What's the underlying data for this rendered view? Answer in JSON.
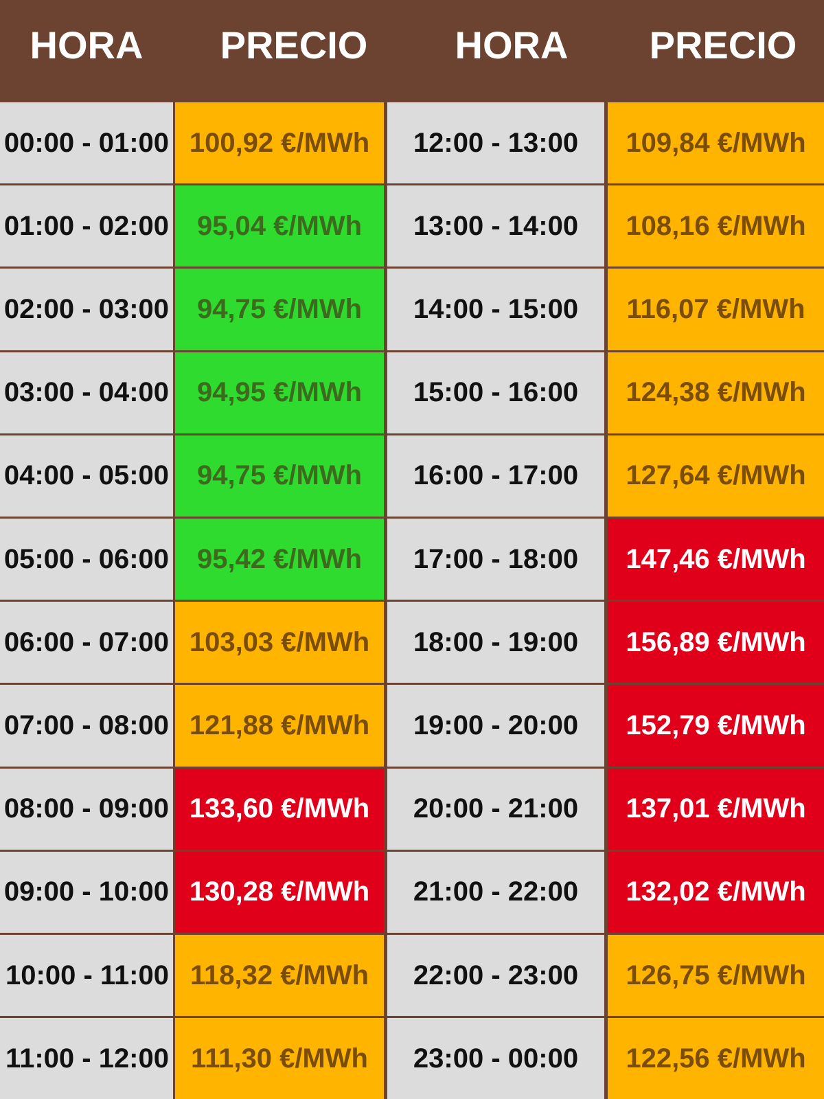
{
  "header": [
    "HORA",
    "PRECIO",
    "HORA",
    "PRECIO"
  ],
  "rows": [
    {
      "cells": [
        "00:00 - 01:00",
        "100,92 €/MWh",
        "12:00 - 13:00",
        "109,84 €/MWh"
      ],
      "fills": [
        "#ffb400",
        "#ffb400"
      ]
    },
    {
      "cells": [
        "01:00 - 02:00",
        "95,04 €/MWh",
        "13:00 - 14:00",
        "108,16 €/MWh"
      ],
      "fills": [
        "#2edb2e",
        "#ffb400"
      ]
    },
    {
      "cells": [
        "02:00 - 03:00",
        "94,75 €/MWh",
        "14:00 - 15:00",
        "116,07 €/MWh"
      ],
      "fills": [
        "#2edb2e",
        "#ffb400"
      ]
    },
    {
      "cells": [
        "03:00 - 04:00",
        "94,95 €/MWh",
        "15:00 - 16:00",
        "124,38 €/MWh"
      ],
      "fills": [
        "#2edb2e",
        "#ffb400"
      ]
    },
    {
      "cells": [
        "04:00 - 05:00",
        "94,75 €/MWh",
        "16:00 - 17:00",
        "127,64 €/MWh"
      ],
      "fills": [
        "#2edb2e",
        "#ffb400"
      ]
    },
    {
      "cells": [
        "05:00 - 06:00",
        "95,42 €/MWh",
        "17:00 - 18:00",
        "147,46 €/MWh"
      ],
      "fills": [
        "#2edb2e",
        "#e0001a"
      ]
    },
    {
      "cells": [
        "06:00 - 07:00",
        "103,03 €/MWh",
        "18:00 - 19:00",
        "156,89 €/MWh"
      ],
      "fills": [
        "#ffb400",
        "#e0001a"
      ]
    },
    {
      "cells": [
        "07:00 - 08:00",
        "121,88 €/MWh",
        "19:00 - 20:00",
        "152,79 €/MWh"
      ],
      "fills": [
        "#ffb400",
        "#e0001a"
      ]
    },
    {
      "cells": [
        "08:00 - 09:00",
        "133,60 €/MWh",
        "20:00 - 21:00",
        "137,01 €/MWh"
      ],
      "fills": [
        "#e0001a",
        "#e0001a"
      ]
    },
    {
      "cells": [
        "09:00 - 10:00",
        "130,28 €/MWh",
        "21:00 - 22:00",
        "132,02 €/MWh"
      ],
      "fills": [
        "#e0001a",
        "#e0001a"
      ]
    },
    {
      "cells": [
        "10:00 - 11:00",
        "118,32 €/MWh",
        "22:00 - 23:00",
        "126,75 €/MWh"
      ],
      "fills": [
        "#ffb400",
        "#ffb400"
      ]
    },
    {
      "cells": [
        "11:00 - 12:00",
        "111,30 €/MWh",
        "23:00 - 00:00",
        "122,56 €/MWh"
      ],
      "fills": [
        "#ffb400",
        "#ffb400"
      ]
    }
  ]
}
